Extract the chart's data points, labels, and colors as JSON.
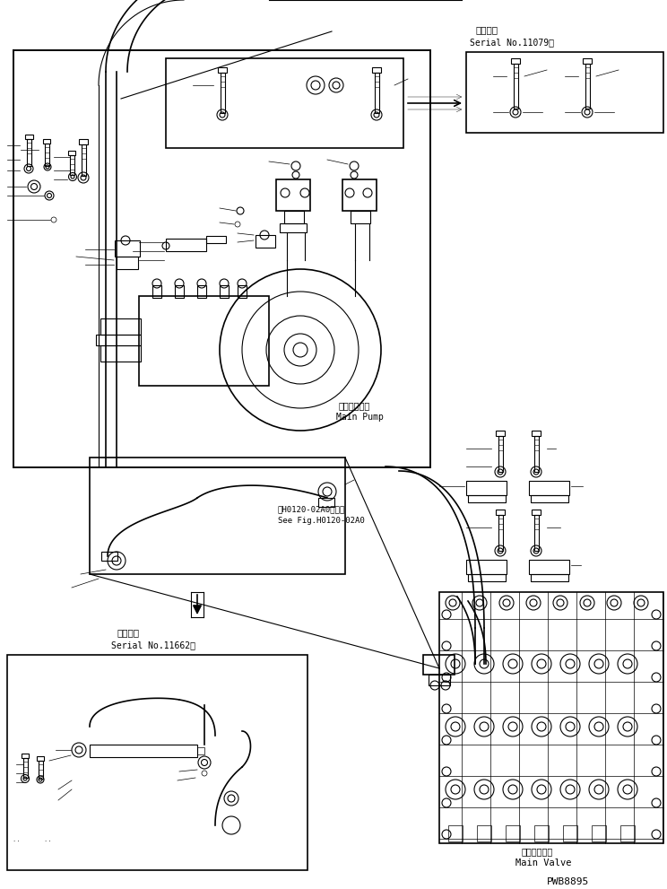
{
  "bg_color": "#ffffff",
  "line_color": "#000000",
  "serial_no_top_line1": "適用号機",
  "serial_no_top_line2": "Serial No.11079～",
  "serial_no_bot_line1": "適用号機",
  "serial_no_bot_line2": "Serial No.11662～",
  "main_pump_jp": "メインポンプ",
  "main_pump_en": "Main Pump",
  "main_valve_jp": "メインバルブ",
  "main_valve_en": "Main Valve",
  "ref_line1": "第H0120-02A0図参照",
  "ref_line2": "See Fig.H0120-02A0",
  "part_number": "PWB8895",
  "figsize": [
    7.44,
    9.91
  ],
  "dpi": 100
}
